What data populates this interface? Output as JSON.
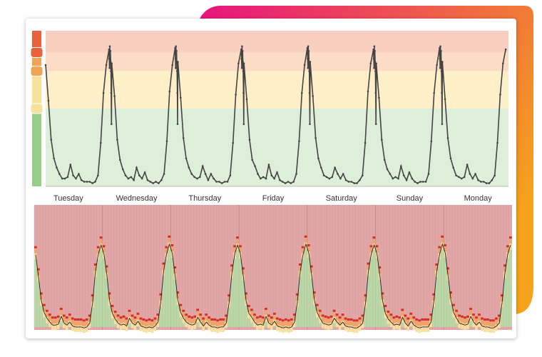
{
  "colors": {
    "gradient_start": "#e8127e",
    "gradient_end": "#f5a21c",
    "band_red": "#f8cfc0",
    "band_orange": "#fcdcc4",
    "band_yellow": "#fdf0c8",
    "band_green": "#ddefd9",
    "line": "#444444",
    "heatmap_bg": "#e1a6a6",
    "heat_red": "#d92b20",
    "heat_orange": "#f0a566",
    "heat_yellow": "#f9dfa0",
    "heat_green": "#b7d9a6",
    "scale_red": "#e8623c",
    "scale_orange": "#f1a356",
    "scale_yellow": "#f8e19a",
    "scale_green": "#9bcd8a"
  },
  "chart_data": [
    {
      "type": "line",
      "description_series": "weekly load profile, sampled 24 times per day, 7 days",
      "samples_per_day": 24,
      "ylim": [
        0,
        100
      ],
      "grid": false,
      "bands": [
        {
          "level": "red",
          "from": 86,
          "to": 100
        },
        {
          "level": "orange",
          "from": 74,
          "to": 86
        },
        {
          "level": "yellow",
          "from": 50,
          "to": 74
        },
        {
          "level": "green",
          "from": 0,
          "to": 50
        }
      ],
      "days": [
        {
          "label": "Tuesday",
          "values": [
            78,
            55,
            30,
            18,
            12,
            8,
            5,
            5,
            6,
            14,
            7,
            5,
            8,
            4,
            3,
            3,
            3,
            2,
            3,
            7,
            28,
            60,
            78,
            88
          ]
        },
        {
          "label": "Wednesday",
          "values": [
            79,
            58,
            30,
            17,
            11,
            7,
            5,
            6,
            4,
            12,
            7,
            5,
            9,
            4,
            3,
            2,
            3,
            2,
            4,
            8,
            29,
            61,
            78,
            89
          ]
        },
        {
          "label": "Thursday",
          "values": [
            80,
            57,
            31,
            18,
            12,
            8,
            6,
            5,
            6,
            13,
            8,
            4,
            8,
            5,
            3,
            3,
            2,
            3,
            3,
            7,
            28,
            59,
            79,
            88
          ]
        },
        {
          "label": "Friday",
          "values": [
            79,
            56,
            30,
            17,
            13,
            8,
            5,
            6,
            5,
            14,
            7,
            5,
            9,
            4,
            3,
            2,
            3,
            2,
            3,
            8,
            29,
            60,
            78,
            89
          ]
        },
        {
          "label": "Saturday",
          "values": [
            80,
            58,
            31,
            18,
            12,
            7,
            6,
            5,
            6,
            12,
            8,
            5,
            8,
            4,
            3,
            3,
            2,
            2,
            4,
            7,
            28,
            61,
            79,
            88
          ]
        },
        {
          "label": "Sunday",
          "values": [
            79,
            57,
            30,
            17,
            11,
            8,
            5,
            6,
            5,
            13,
            7,
            4,
            9,
            5,
            3,
            2,
            3,
            3,
            3,
            8,
            29,
            60,
            78,
            89
          ]
        },
        {
          "label": "Monday",
          "values": [
            80,
            56,
            31,
            18,
            12,
            7,
            6,
            5,
            6,
            14,
            8,
            5,
            8,
            4,
            3,
            3,
            2,
            2,
            4,
            7,
            28,
            59,
            79,
            88
          ]
        }
      ],
      "extra_peak_samples": [
        82,
        76,
        90,
        79,
        87,
        80,
        74,
        60,
        40
      ]
    },
    {
      "type": "heatmap",
      "columns_per_day": 24,
      "day_labels": [
        "Tuesday",
        "Wednesday",
        "Thursday",
        "Friday",
        "Saturday",
        "Sunday",
        "Monday"
      ],
      "ylim": [
        0,
        100
      ],
      "levels": [
        "red",
        "orange",
        "yellow",
        "green"
      ]
    }
  ]
}
